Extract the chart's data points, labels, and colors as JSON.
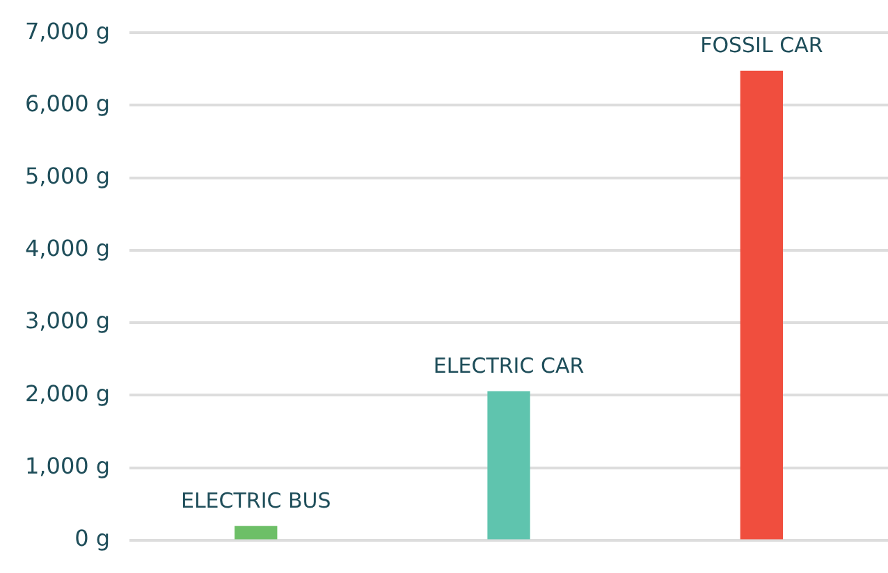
{
  "chart_data": {
    "type": "bar",
    "categories": [
      "ELECTRIC BUS",
      "ELECTRIC CAR",
      "FOSSIL CAR"
    ],
    "values": [
      190,
      2050,
      6470
    ],
    "colors": [
      "#6dbf67",
      "#5fc4ae",
      "#f04e3e"
    ],
    "ylim": [
      0,
      7000
    ],
    "yticks": [
      {
        "value": 0,
        "label": "0 g"
      },
      {
        "value": 1000,
        "label": "1,000 g"
      },
      {
        "value": 2000,
        "label": "2,000 g"
      },
      {
        "value": 3000,
        "label": "3,000 g"
      },
      {
        "value": 4000,
        "label": "4,000 g"
      },
      {
        "value": 5000,
        "label": "5,000 g"
      },
      {
        "value": 6000,
        "label": "6,000 g"
      },
      {
        "value": 7000,
        "label": "7,000 g"
      }
    ],
    "grid": "y",
    "legend": false,
    "tick_labels": "y"
  }
}
